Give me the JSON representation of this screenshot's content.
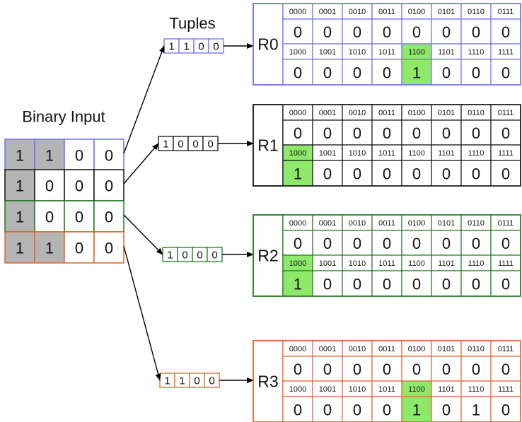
{
  "input": {
    "title": "Binary Input",
    "rows": [
      [
        1,
        1,
        0,
        0
      ],
      [
        1,
        0,
        0,
        0
      ],
      [
        1,
        0,
        0,
        0
      ],
      [
        1,
        1,
        0,
        0
      ]
    ]
  },
  "tuples": {
    "title": "Tuples",
    "items": [
      [
        1,
        1,
        0,
        0
      ],
      [
        1,
        0,
        0,
        0
      ],
      [
        1,
        0,
        0,
        0
      ],
      [
        1,
        1,
        0,
        0
      ]
    ]
  },
  "rams": [
    {
      "label": "R0",
      "addresses": [
        "0000",
        "0001",
        "0010",
        "0011",
        "0100",
        "0101",
        "0110",
        "0111",
        "1000",
        "1001",
        "1010",
        "1011",
        "1100",
        "1101",
        "1110",
        "1111"
      ],
      "values": [
        0,
        0,
        0,
        0,
        0,
        0,
        0,
        0,
        0,
        0,
        0,
        0,
        1,
        0,
        0,
        0
      ]
    },
    {
      "label": "R1",
      "addresses": [
        "0000",
        "0001",
        "0010",
        "0011",
        "0100",
        "0101",
        "0110",
        "0111",
        "1000",
        "1001",
        "1010",
        "1011",
        "1100",
        "1101",
        "1110",
        "1111"
      ],
      "values": [
        0,
        0,
        0,
        0,
        0,
        0,
        0,
        0,
        1,
        0,
        0,
        0,
        0,
        0,
        0,
        0
      ]
    },
    {
      "label": "R2",
      "addresses": [
        "0000",
        "0001",
        "0010",
        "0011",
        "0100",
        "0101",
        "0110",
        "0111",
        "1000",
        "1001",
        "1010",
        "1011",
        "1100",
        "1101",
        "1110",
        "1111"
      ],
      "values": [
        0,
        0,
        0,
        0,
        0,
        0,
        0,
        0,
        1,
        0,
        0,
        0,
        0,
        0,
        0,
        0
      ]
    },
    {
      "label": "R3",
      "addresses": [
        "0000",
        "0001",
        "0010",
        "0011",
        "0100",
        "0101",
        "0110",
        "0111",
        "1000",
        "1001",
        "1010",
        "1011",
        "1100",
        "1101",
        "1110",
        "1111"
      ],
      "values": [
        0,
        0,
        0,
        0,
        0,
        0,
        0,
        0,
        0,
        0,
        0,
        0,
        1,
        0,
        1,
        0
      ]
    }
  ]
}
